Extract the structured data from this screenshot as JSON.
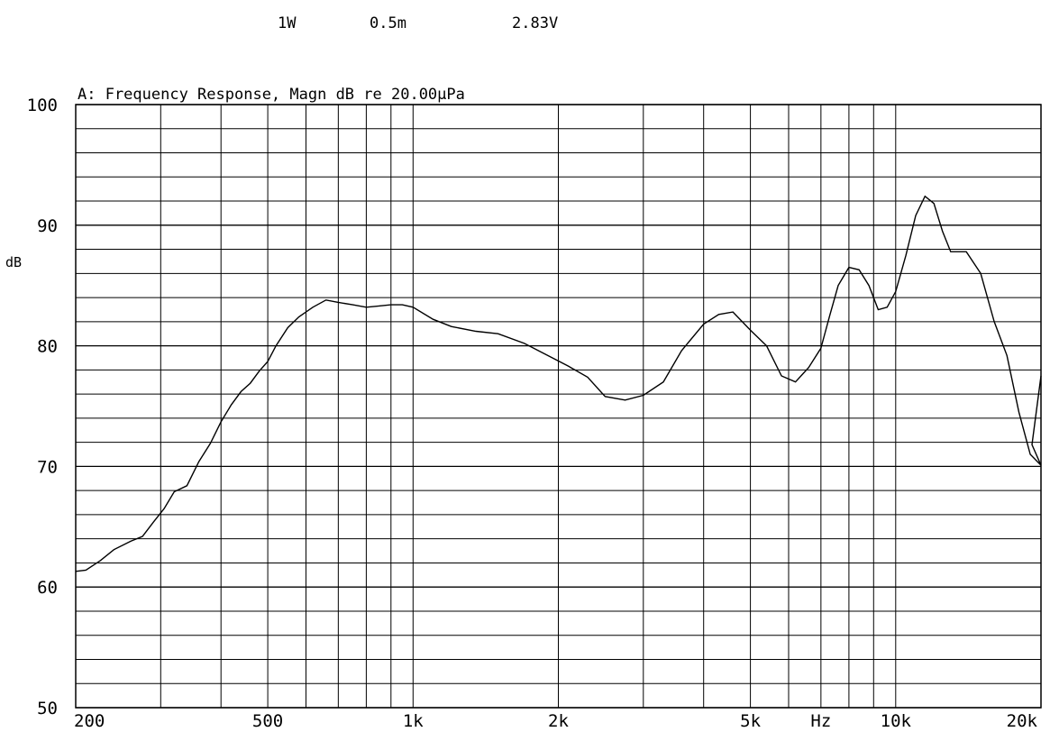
{
  "header": {
    "power": "1W",
    "distance": "0.5m",
    "voltage": "2.83V"
  },
  "chart_data": {
    "type": "line",
    "title": "A: Frequency Response, Magn dB re 20.00µPa",
    "ylabel": "dB",
    "xlabel": "Hz",
    "xscale": "log",
    "xlim": [
      200,
      20000
    ],
    "ylim": [
      50,
      100
    ],
    "y_tick_labels": [
      "100",
      "90",
      "80",
      "70",
      "60",
      "50"
    ],
    "y_tick_values": [
      100,
      90,
      80,
      70,
      60,
      50
    ],
    "x_tick_labels": [
      "200",
      "500",
      "1k",
      "2k",
      "5k",
      "Hz",
      "10k",
      "20k"
    ],
    "x_tick_values": [
      200,
      500,
      1000,
      2000,
      5000,
      7000,
      10000,
      20000
    ],
    "grid": true,
    "legend": "none",
    "series": [
      {
        "x": [
          200,
          210,
          225,
          240,
          260,
          275,
          290,
          305,
          320,
          340,
          360,
          380,
          400,
          420,
          440,
          460,
          480,
          500,
          520,
          550,
          580,
          620,
          660,
          700,
          750,
          800,
          850,
          900,
          950,
          1000,
          1100,
          1200,
          1350,
          1500,
          1700,
          1900,
          2100,
          2300,
          2500,
          2750,
          3000,
          3300,
          3600,
          4000,
          4300,
          4600,
          5000,
          5400,
          5800,
          6200,
          6600,
          7000,
          7300,
          7600,
          8000,
          8400,
          8800,
          9200,
          9600,
          10000,
          10500,
          11000,
          11500,
          12000,
          12500,
          13000,
          14000,
          15000,
          16000,
          17000,
          18000,
          19000,
          20000
        ],
        "y": [
          61.3,
          61.4,
          62.2,
          63.1,
          63.8,
          64.2,
          65.4,
          66.5,
          67.9,
          68.4,
          70.4,
          71.9,
          73.7,
          75.1,
          76.2,
          76.9,
          77.9,
          78.7,
          80.0,
          81.5,
          82.4,
          83.2,
          83.8,
          83.6,
          83.4,
          83.2,
          83.3,
          83.4,
          83.4,
          83.2,
          82.2,
          81.6,
          81.2,
          81.0,
          80.2,
          79.2,
          78.3,
          77.4,
          75.8,
          75.5,
          75.9,
          77.0,
          79.6,
          81.8,
          82.6,
          82.8,
          81.3,
          80.0,
          77.5,
          77.0,
          78.2,
          79.8,
          82.5,
          85.0,
          86.5,
          86.3,
          85.0,
          83.0,
          83.2,
          84.5,
          87.5,
          90.8,
          92.4,
          91.8,
          89.5,
          87.8,
          87.8,
          86.0,
          82.0,
          79.2,
          74.5,
          71.0,
          70.1
        ]
      }
    ]
  }
}
